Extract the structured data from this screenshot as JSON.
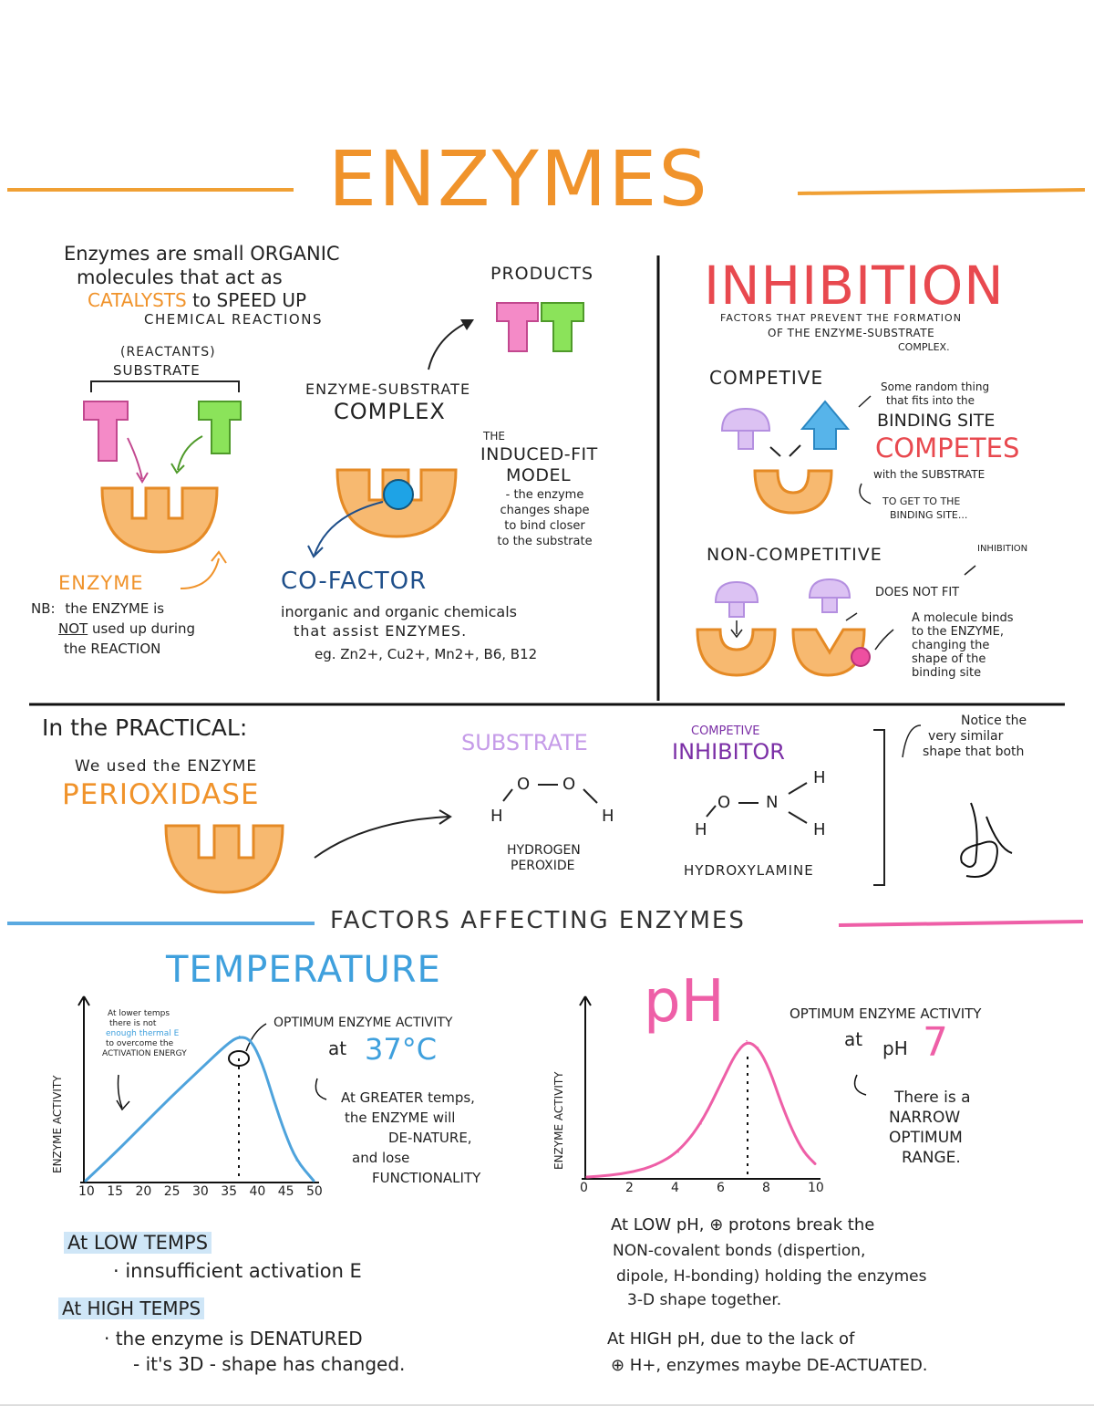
{
  "colors": {
    "orange": "#f0932b",
    "orange_fill": "#f7b970",
    "pink": "#ee5fa7",
    "pink_fill": "#f48ac7",
    "green": "#7fe04a",
    "blue": "#3fa0dd",
    "purple": "#b48fe0",
    "purple_fill": "#dcc2f3",
    "red": "#e8494f",
    "dark_blue": "#1f4f8a",
    "violet": "#7b2fa6"
  },
  "title": "ENZYMES",
  "intro": {
    "line1": "Enzymes are small ORGANIC",
    "line2": "molecules that act as",
    "catalysts": "CATALYSTS",
    "line3_rest": "to SPEED UP",
    "line4": "CHEMICAL REACTIONS"
  },
  "substrate": {
    "reactants": "(REACTANTS)",
    "label": "SUBSTRATE"
  },
  "enzyme": {
    "label": "ENZYME",
    "nb_prefix": "NB:",
    "nb1": "the ENZYME is",
    "nb_not": "NOT",
    "nb2": "used up during",
    "nb3": "the REACTION"
  },
  "complex": {
    "line1": "ENZYME-SUBSTRATE",
    "line2": "COMPLEX"
  },
  "products": {
    "label": "PRODUCTS"
  },
  "induced_fit": {
    "the": "THE",
    "title1": "INDUCED-FIT",
    "title2": "MODEL",
    "desc": [
      "- the enzyme",
      "changes shape",
      "to bind closer",
      "to the substrate"
    ]
  },
  "cofactor": {
    "title": "CO-FACTOR",
    "line1": "inorganic and organic chemicals",
    "line2": "that assist ENZYMES.",
    "eg": "eg. Zn2+, Cu2+, Mn2+, B6, B12"
  },
  "inhibition": {
    "title": "INHIBITION",
    "sub1": "FACTORS THAT PREVENT THE FORMATION",
    "sub2": "OF THE ENZYME-SUBSTRATE",
    "sub3": "COMPLEX.",
    "competitive": {
      "label": "COMPETIVE",
      "note1": "Some random thing",
      "note2": "that fits into the",
      "binding_site": "BINDING SITE",
      "competes": "COMPETES",
      "with": "with the SUBSTRATE",
      "to_get1": "TO GET TO THE",
      "to_get2": "BINDING SITE..."
    },
    "non_competitive": {
      "label": "NON-COMPETITIVE",
      "tag": "INHIBITION",
      "does_not_fit": "DOES NOT FIT",
      "note": [
        "A molecule binds",
        "to the ENZYME,",
        "changing the",
        "shape of the",
        "binding site"
      ]
    }
  },
  "practical": {
    "heading": "In the PRACTICAL:",
    "used": "We used the ENZYME",
    "enzyme_name": "PERIOXIDASE",
    "substrate_label": "SUBSTRATE",
    "substrate_name1": "HYDROGEN",
    "substrate_name2": "PEROXIDE",
    "inhibitor_small": "COMPETIVE",
    "inhibitor_label": "INHIBITOR",
    "inhibitor_name": "HYDROXYLAMINE",
    "notice": [
      "Notice the",
      "very similar",
      "shape that both"
    ],
    "atoms": {
      "O": "O",
      "H": "H",
      "N": "N",
      "bond": "—"
    }
  },
  "factors": {
    "heading": "FACTORS AFFECTING ENZYMES",
    "temperature": {
      "title": "TEMPERATURE",
      "note": [
        "At lower temps",
        "there is not",
        "enough thermal E",
        "to overcome the",
        "ACTIVATION ENERGY"
      ],
      "optimum": "OPTIMUM ENZYME ACTIVITY",
      "at": "at",
      "value": "37°C",
      "greater": [
        "At GREATER temps,",
        "the ENZYME will",
        "DE-NATURE,",
        "and lose",
        "FUNCTIONALITY"
      ],
      "y_axis": "ENZYME ACTIVITY",
      "low_heading": "At LOW TEMPS",
      "low_text": "· innsufficient activation E",
      "high_heading": "At HIGH TEMPS",
      "high_text1": "· the enzyme is DENATURED",
      "high_text2": "- it's 3D - shape has changed."
    },
    "ph": {
      "title": "pH",
      "optimum": "OPTIMUM ENZYME ACTIVITY",
      "at": "at",
      "ph_word": "pH",
      "value": "7",
      "narrow": [
        "There is a",
        "NARROW",
        "OPTIMUM",
        "RANGE."
      ],
      "y_axis": "ENZYME ACTIVITY",
      "low1": "At LOW pH, ⊕ protons break the",
      "low2": "NON-covalent bonds (dispertion,",
      "low3": "dipole, H-bonding) holding the enzymes",
      "low4": "3-D shape together.",
      "high1": "At HIGH pH, due to the lack of",
      "high2": "⊕ H+, enzymes maybe DE-ACTUATED."
    }
  },
  "chart_data": [
    {
      "type": "line",
      "title": "TEMPERATURE",
      "xlabel": "",
      "ylabel": "ENZYME ACTIVITY",
      "x_ticks": [
        "10",
        "15",
        "20",
        "25",
        "30",
        "35",
        "40",
        "45",
        "50"
      ],
      "xlim": [
        10,
        50
      ],
      "ylim": [
        0,
        1
      ],
      "series": [
        {
          "x": [
            10,
            15,
            20,
            25,
            30,
            35,
            37,
            39,
            41,
            43,
            45,
            47,
            50
          ],
          "y": [
            0.0,
            0.16,
            0.33,
            0.5,
            0.66,
            0.82,
            0.86,
            0.84,
            0.7,
            0.48,
            0.28,
            0.12,
            0.0
          ]
        }
      ],
      "annotations": [
        {
          "x": 37,
          "text": "OPTIMUM ENZYME ACTIVITY at 37°C"
        }
      ]
    },
    {
      "type": "line",
      "title": "pH",
      "xlabel": "",
      "ylabel": "ENZYME ACTIVITY",
      "x_ticks": [
        "0",
        "2",
        "4",
        "6",
        "8",
        "10"
      ],
      "xlim": [
        0,
        10
      ],
      "ylim": [
        0,
        1
      ],
      "series": [
        {
          "x": [
            0,
            1,
            2,
            3,
            4,
            5,
            6,
            6.5,
            7,
            7.5,
            8,
            8.5,
            9,
            9.5,
            10
          ],
          "y": [
            0.0,
            0.01,
            0.03,
            0.07,
            0.15,
            0.32,
            0.6,
            0.74,
            0.82,
            0.78,
            0.65,
            0.45,
            0.28,
            0.15,
            0.08
          ]
        }
      ],
      "annotations": [
        {
          "x": 7,
          "text": "OPTIMUM ENZYME ACTIVITY at pH 7"
        }
      ]
    }
  ]
}
